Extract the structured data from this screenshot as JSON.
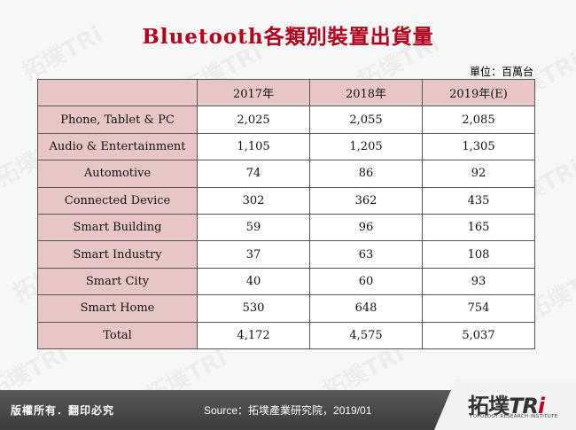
{
  "title": "Bluetooth各類別裝置出貨量",
  "unit": "單位：百萬台",
  "table": {
    "headers": [
      "",
      "2017年",
      "2018年",
      "2019年(E)"
    ],
    "rows": [
      {
        "label": "Phone, Tablet & PC",
        "values": [
          "2,025",
          "2,055",
          "2,085"
        ]
      },
      {
        "label": "Audio & Entertainment",
        "values": [
          "1,105",
          "1,205",
          "1,305"
        ]
      },
      {
        "label": "Automotive",
        "values": [
          "74",
          "86",
          "92"
        ]
      },
      {
        "label": "Connected Device",
        "values": [
          "302",
          "362",
          "435"
        ]
      },
      {
        "label": "Smart Building",
        "values": [
          "59",
          "96",
          "165"
        ]
      },
      {
        "label": "Smart Industry",
        "values": [
          "37",
          "63",
          "108"
        ]
      },
      {
        "label": "Smart City",
        "values": [
          "40",
          "60",
          "93"
        ]
      },
      {
        "label": "Smart Home",
        "values": [
          "530",
          "648",
          "754"
        ]
      },
      {
        "label": "Total",
        "values": [
          "4,172",
          "4,575",
          "5,037"
        ]
      }
    ]
  },
  "footer": {
    "copyright": "版權所有．翻印必究",
    "source": "Source：拓墣產業研究院，2019/01",
    "logo_main": "拓墣",
    "logo_tri": "TR",
    "logo_i": "i",
    "logo_sub": "TOPOLOGY RESEARCH INSTITUTE"
  },
  "colors": {
    "title": "#b3001b",
    "table_header_bg": "#e8c6c6",
    "footer_bg": "#444444",
    "logo_accent": "#c4001e"
  }
}
